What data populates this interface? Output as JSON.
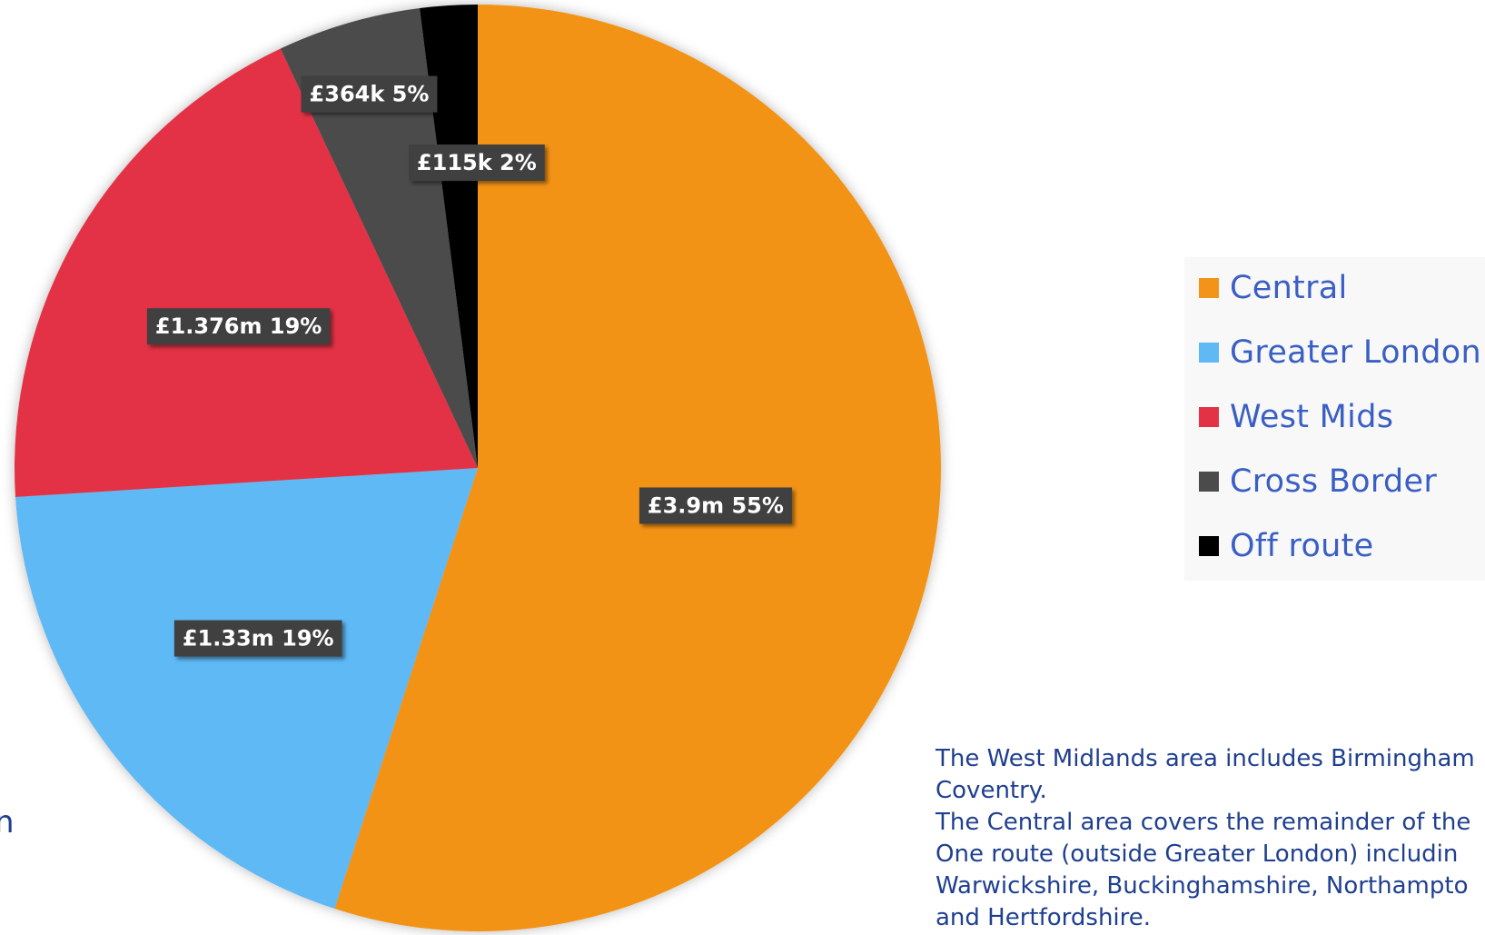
{
  "chart_data": {
    "type": "pie",
    "categories": [
      "Central",
      "Greater London",
      "West Mids",
      "Cross Border",
      "Off route"
    ],
    "values": [
      55,
      19,
      19,
      5,
      2
    ],
    "data_labels": [
      "£3.9m 55%",
      "£1.33m 19%",
      "£1.376m 19%",
      "£364k 5%",
      "£115k 2%"
    ],
    "colors": [
      "#f39318",
      "#5fb9f5",
      "#e33245",
      "#4b4b4b",
      "#000000"
    ],
    "start_angle_deg": 0,
    "direction": "clockwise",
    "legend_placement": "right"
  },
  "legend": {
    "items": [
      {
        "label": "Central",
        "color": "#f39318"
      },
      {
        "label": "Greater London",
        "color": "#5fb9f5"
      },
      {
        "label": "West Mids",
        "color": "#e33245"
      },
      {
        "label": "Cross Border",
        "color": "#4b4b4b"
      },
      {
        "label": "Off route",
        "color": "#000000"
      }
    ]
  },
  "note": {
    "lines": [
      "The West Midlands area includes Birmingham",
      "Coventry.",
      "The Central area covers the remainder of the",
      "One route (outside Greater London) includin",
      "Warwickshire, Buckinghamshire, Northampto",
      "and Hertfordshire."
    ]
  },
  "stray_text": "n"
}
